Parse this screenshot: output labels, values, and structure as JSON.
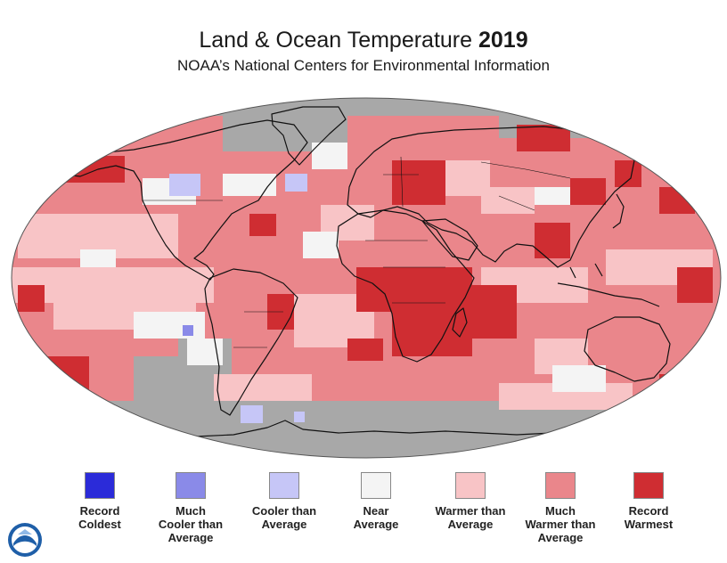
{
  "header": {
    "title": "Land & Ocean Temperature",
    "year": "2019",
    "subtitle": "NOAA’s National Centers for Environmental Information"
  },
  "map": {
    "projection": "robinson",
    "no_data_color": "#a8a8a8",
    "coastline_color": "#111111"
  },
  "legend": {
    "items": [
      {
        "label": "Record\nColdest",
        "color": "#2b2bd9"
      },
      {
        "label": "Much\nCooler than\nAverage",
        "color": "#8a8ae8"
      },
      {
        "label": "Cooler than\nAverage",
        "color": "#c6c6f7"
      },
      {
        "label": "Near\nAverage",
        "color": "#f4f4f4"
      },
      {
        "label": "Warmer than\nAverage",
        "color": "#f8c4c6"
      },
      {
        "label": "Much\nWarmer than\nAverage",
        "color": "#ea868b"
      },
      {
        "label": "Record\nWarmest",
        "color": "#cf2d32"
      }
    ]
  },
  "logo": {
    "icon": "noaa-logo-icon"
  }
}
